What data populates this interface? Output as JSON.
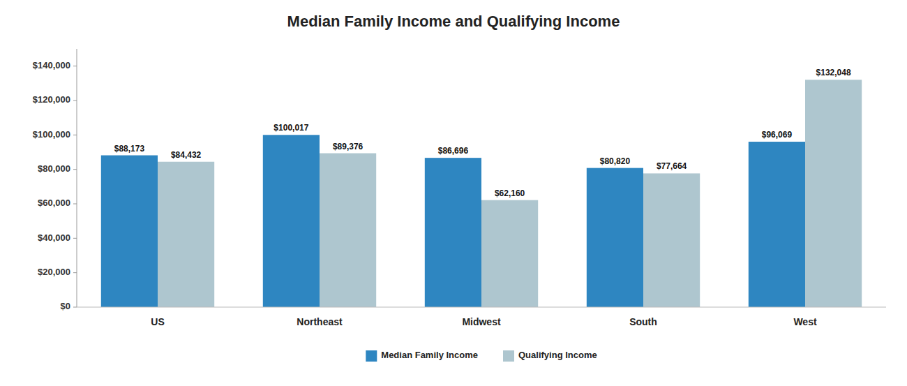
{
  "chart_data": {
    "type": "bar",
    "title": "Median Family Income and Qualifying Income",
    "categories": [
      "US",
      "Northeast",
      "Midwest",
      "South",
      "West"
    ],
    "series": [
      {
        "name": "Median Family Income",
        "color": "#2E86C1",
        "values": [
          88173,
          100017,
          86696,
          80820,
          96069
        ],
        "value_labels": [
          "$88,173",
          "$100,017",
          "$86,696",
          "$80,820",
          "$96,069"
        ]
      },
      {
        "name": "Qualifying Income",
        "color": "#AEC6CF",
        "values": [
          84432,
          89376,
          62160,
          77664,
          132048
        ],
        "value_labels": [
          "$84,432",
          "$89,376",
          "$62,160",
          "$77,664",
          "$132,048"
        ]
      }
    ],
    "ylim": [
      0,
      150000
    ],
    "yticks": [
      {
        "value": 0,
        "label": "$0"
      },
      {
        "value": 20000,
        "label": "$20,000"
      },
      {
        "value": 40000,
        "label": "$40,000"
      },
      {
        "value": 60000,
        "label": "$60,000"
      },
      {
        "value": 80000,
        "label": "$80,000"
      },
      {
        "value": 100000,
        "label": "$100,000"
      },
      {
        "value": 120000,
        "label": "$120,000"
      },
      {
        "value": 140000,
        "label": "$140,000"
      }
    ],
    "grid": false,
    "legend": "bottom",
    "data_labels": true
  }
}
